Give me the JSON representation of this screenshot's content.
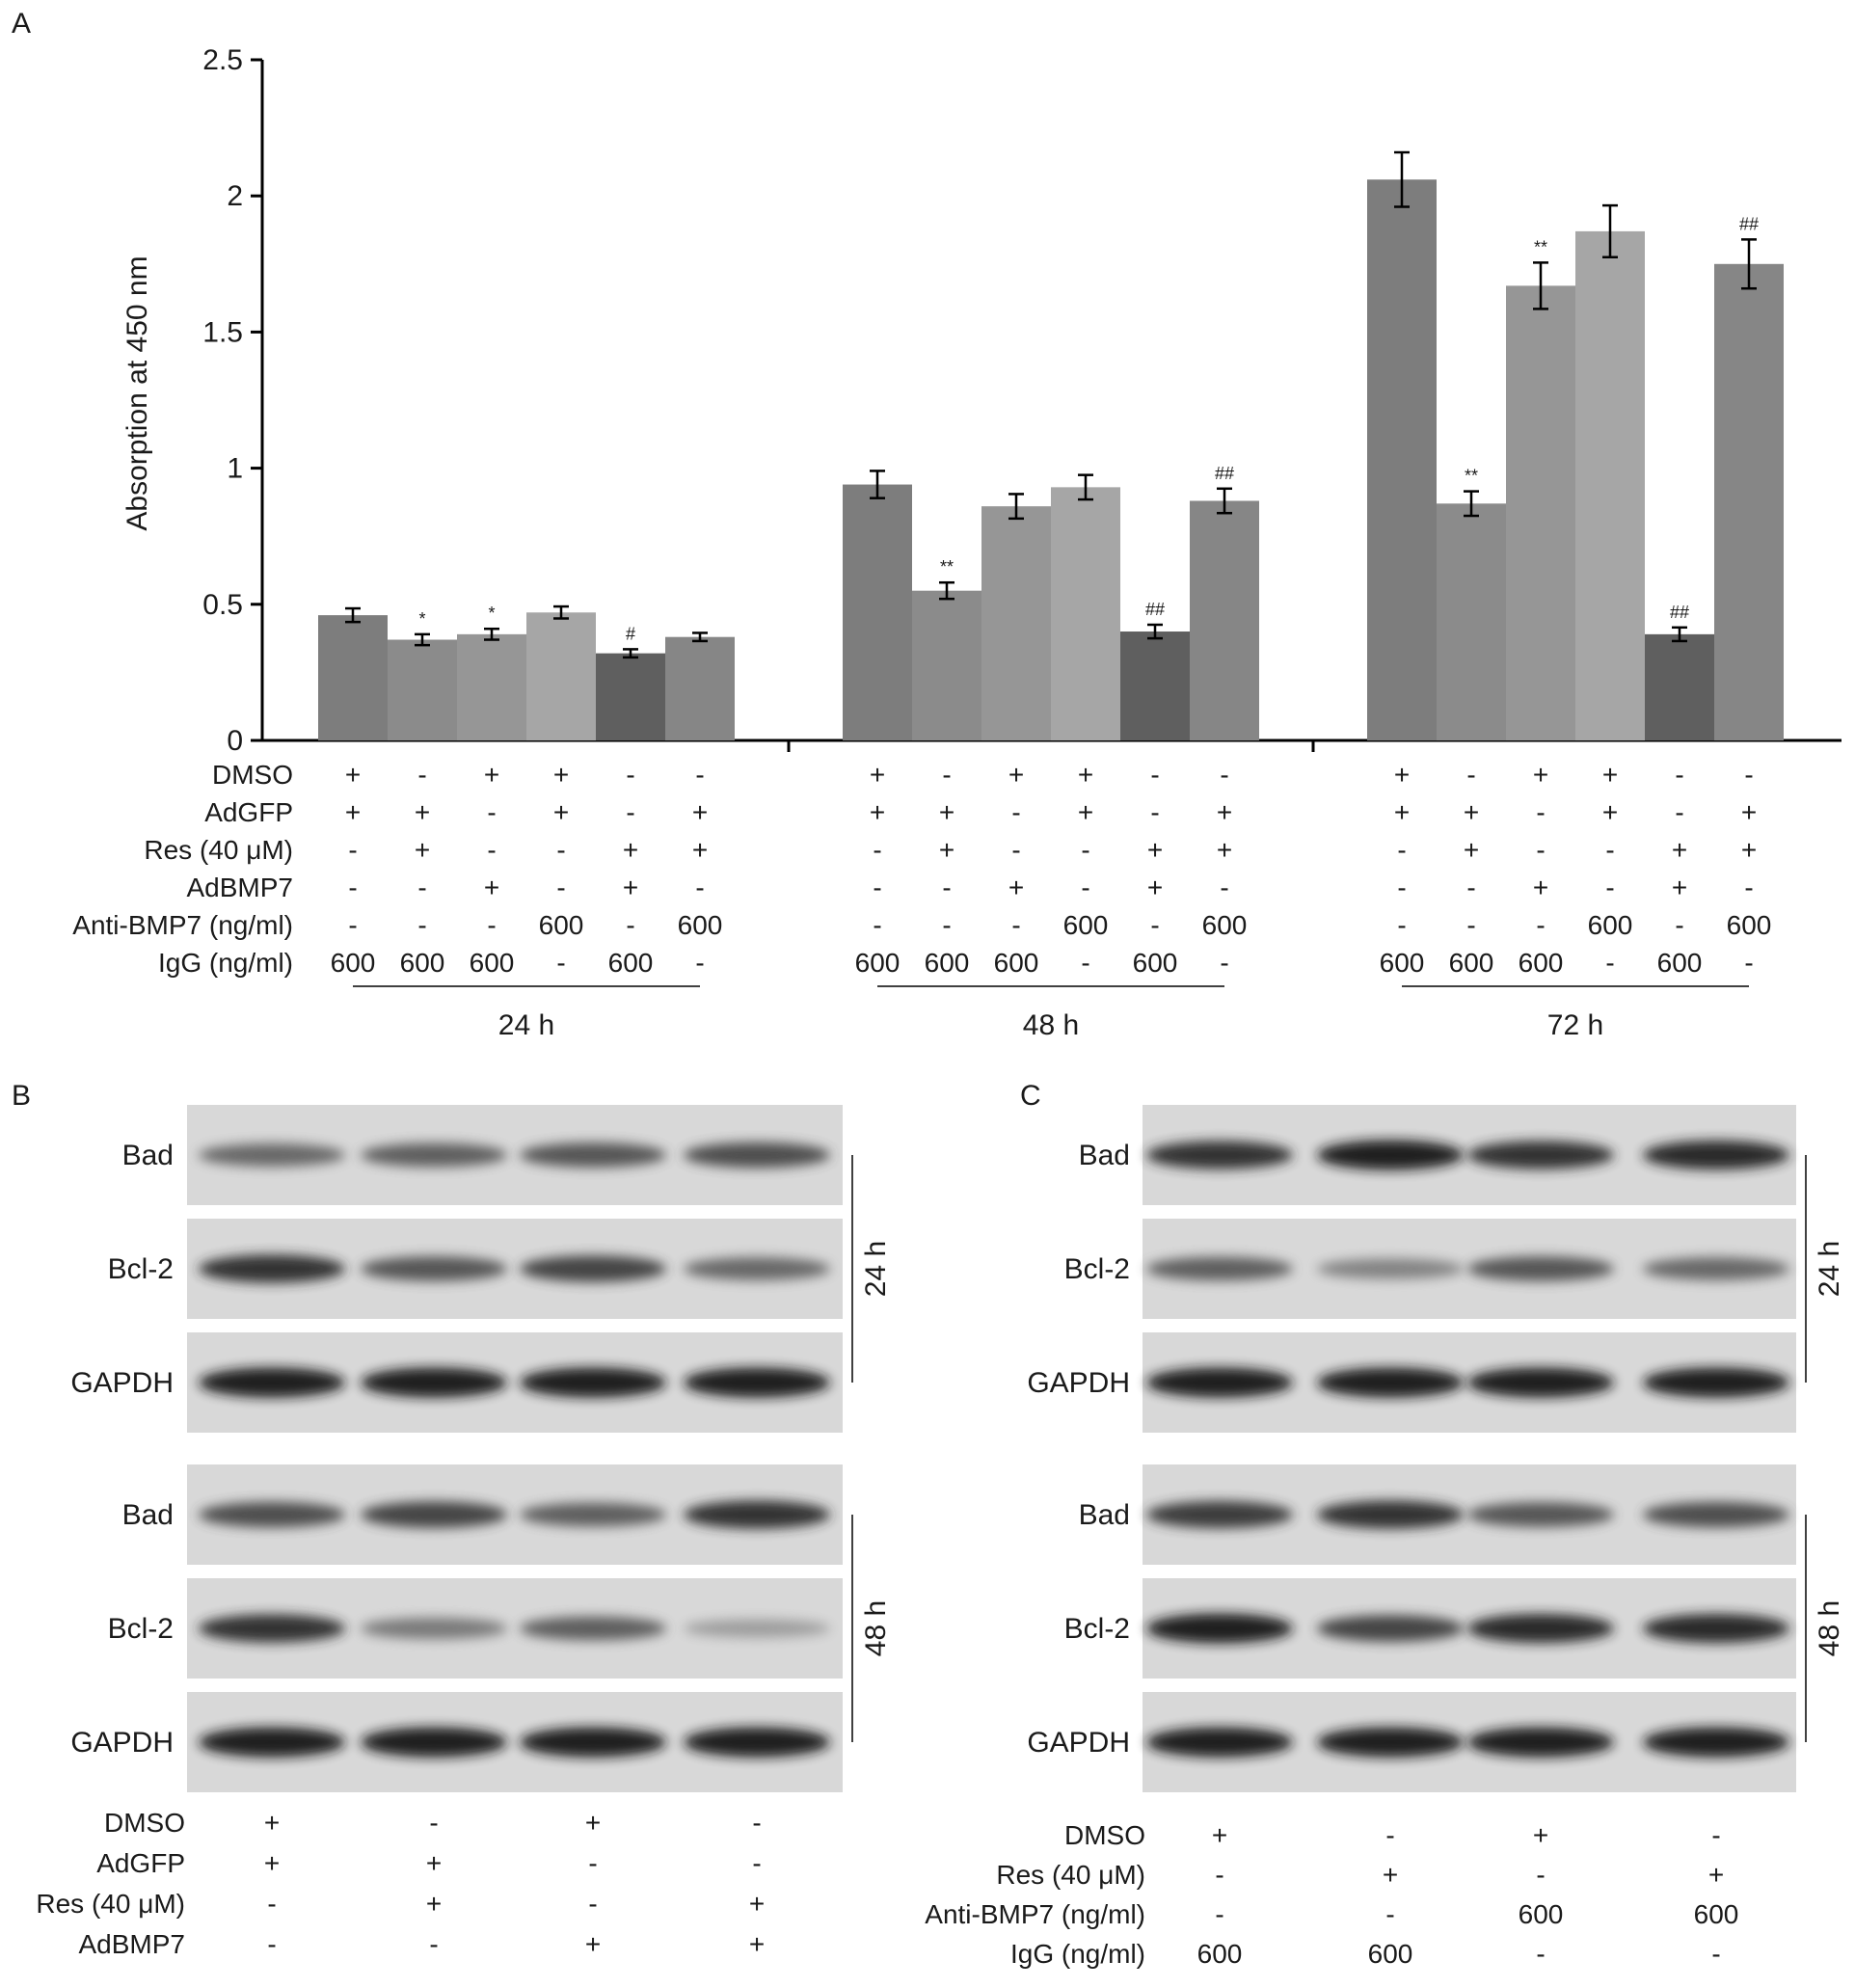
{
  "panels": {
    "a": "A",
    "b": "B",
    "c": "C"
  },
  "chart_data": {
    "type": "bar",
    "ylabel": "Absorption at 450 nm",
    "ylim": [
      0,
      2.5
    ],
    "yticks": [
      0,
      0.5,
      1,
      1.5,
      2,
      2.5
    ],
    "ytick_labels": [
      "0",
      "0.5",
      "1",
      "1.5",
      "2",
      "2.5"
    ],
    "groups": [
      {
        "label": "24 h",
        "values": [
          0.46,
          0.37,
          0.39,
          0.47,
          0.32,
          0.38
        ],
        "errors": [
          0.025,
          0.02,
          0.02,
          0.022,
          0.015,
          0.015
        ],
        "marks": [
          "",
          "*",
          "*",
          "",
          "#",
          ""
        ]
      },
      {
        "label": "48 h",
        "values": [
          0.94,
          0.55,
          0.86,
          0.93,
          0.4,
          0.88
        ],
        "errors": [
          0.05,
          0.03,
          0.045,
          0.045,
          0.025,
          0.045
        ],
        "marks": [
          "",
          "**",
          "",
          "",
          "##",
          "##"
        ]
      },
      {
        "label": "72 h",
        "values": [
          2.06,
          0.87,
          1.67,
          1.87,
          0.39,
          1.75
        ],
        "errors": [
          0.1,
          0.045,
          0.085,
          0.095,
          0.025,
          0.09
        ],
        "marks": [
          "",
          "**",
          "**",
          "",
          "##",
          "##"
        ]
      }
    ],
    "bar_colors": [
      "#7d7d7d",
      "#8b8b8b",
      "#969696",
      "#a6a6a6",
      "#5f5f5f",
      "#868686"
    ],
    "conditions": [
      {
        "label": "DMSO",
        "values": [
          "+",
          "-",
          "+",
          "+",
          "-",
          "-"
        ]
      },
      {
        "label": "AdGFP",
        "values": [
          "+",
          "+",
          "-",
          "+",
          "-",
          "+"
        ]
      },
      {
        "label": "Res (40 μM)",
        "values": [
          "-",
          "+",
          "-",
          "-",
          "+",
          "+"
        ]
      },
      {
        "label": "AdBMP7",
        "values": [
          "-",
          "-",
          "+",
          "-",
          "+",
          "-"
        ]
      },
      {
        "label": "Anti-BMP7 (ng/ml)",
        "values": [
          "-",
          "-",
          "-",
          "600",
          "-",
          "600"
        ]
      },
      {
        "label": "IgG (ng/ml)",
        "values": [
          "600",
          "600",
          "600",
          "-",
          "600",
          "-"
        ]
      }
    ]
  },
  "blot_b": {
    "time_labels": [
      "24 h",
      "48 h"
    ],
    "sets": [
      {
        "rows": [
          {
            "label": "Bad",
            "intensity": [
              0.55,
              0.6,
              0.65,
              0.7
            ]
          },
          {
            "label": "Bcl-2",
            "intensity": [
              0.85,
              0.65,
              0.75,
              0.55
            ]
          },
          {
            "label": "GAPDH",
            "intensity": [
              0.95,
              0.95,
              0.95,
              0.95
            ]
          }
        ]
      },
      {
        "rows": [
          {
            "label": "Bad",
            "intensity": [
              0.7,
              0.75,
              0.6,
              0.85
            ]
          },
          {
            "label": "Bcl-2",
            "intensity": [
              0.85,
              0.45,
              0.6,
              0.25
            ]
          },
          {
            "label": "GAPDH",
            "intensity": [
              0.95,
              0.95,
              0.95,
              0.95
            ]
          }
        ]
      }
    ],
    "conditions": [
      {
        "label": "DMSO",
        "values": [
          "+",
          "-",
          "+",
          "-"
        ]
      },
      {
        "label": "AdGFP",
        "values": [
          "+",
          "+",
          "-",
          "-"
        ]
      },
      {
        "label": "Res (40 μM)",
        "values": [
          "-",
          "+",
          "-",
          "+"
        ]
      },
      {
        "label": "AdBMP7",
        "values": [
          "-",
          "-",
          "+",
          "+"
        ]
      }
    ]
  },
  "blot_c": {
    "time_labels": [
      "24 h",
      "48 h"
    ],
    "sets": [
      {
        "rows": [
          {
            "label": "Bad",
            "intensity": [
              0.85,
              0.95,
              0.85,
              0.9
            ]
          },
          {
            "label": "Bcl-2",
            "intensity": [
              0.6,
              0.4,
              0.65,
              0.55
            ]
          },
          {
            "label": "GAPDH",
            "intensity": [
              0.95,
              0.95,
              0.95,
              0.95
            ]
          }
        ]
      },
      {
        "rows": [
          {
            "label": "Bad",
            "intensity": [
              0.8,
              0.85,
              0.65,
              0.7
            ]
          },
          {
            "label": "Bcl-2",
            "intensity": [
              0.95,
              0.75,
              0.9,
              0.9
            ]
          },
          {
            "label": "GAPDH",
            "intensity": [
              0.95,
              0.95,
              0.95,
              0.95
            ]
          }
        ]
      }
    ],
    "conditions": [
      {
        "label": "DMSO",
        "values": [
          "+",
          "-",
          "+",
          "-"
        ]
      },
      {
        "label": "Res (40 μM)",
        "values": [
          "-",
          "+",
          "-",
          "+"
        ]
      },
      {
        "label": "Anti-BMP7 (ng/ml)",
        "values": [
          "-",
          "-",
          "600",
          "600"
        ]
      },
      {
        "label": "IgG (ng/ml)",
        "values": [
          "600",
          "600",
          "-",
          "-"
        ]
      }
    ]
  }
}
